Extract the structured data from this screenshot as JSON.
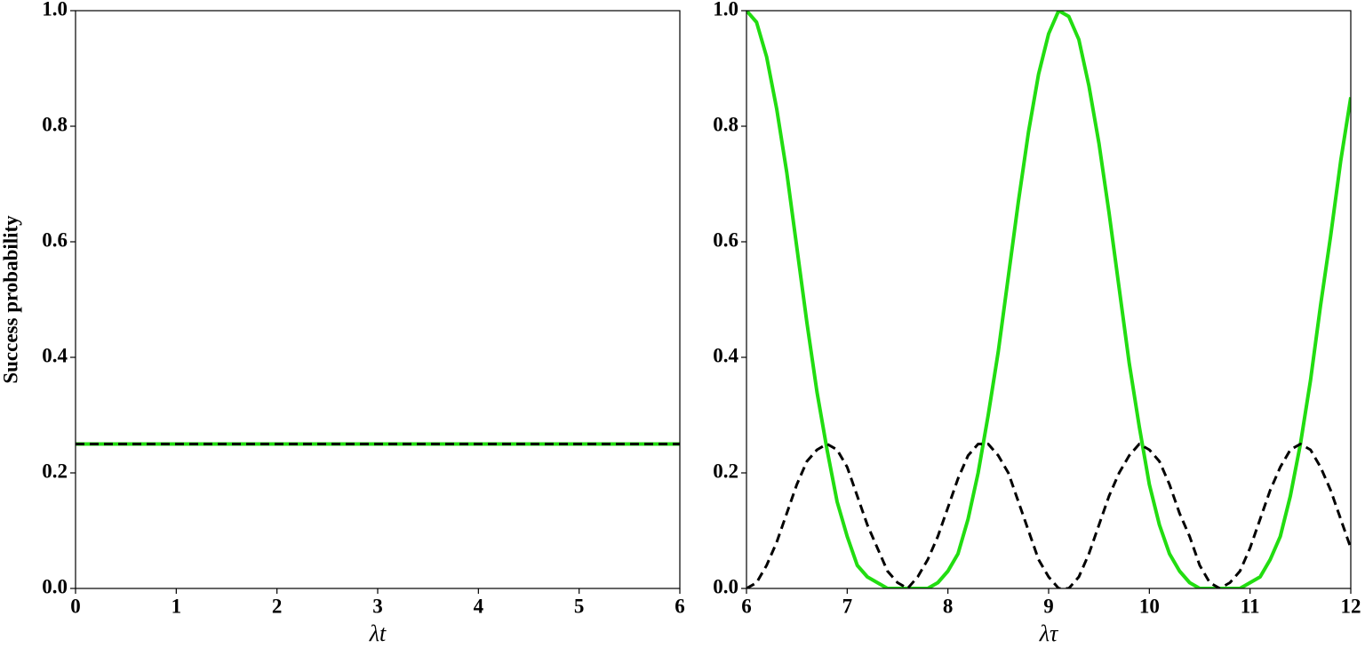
{
  "chart_data": [
    {
      "type": "line",
      "ylabel": "Success probability",
      "xlabel": "λt",
      "x": [
        0,
        6
      ],
      "series": [
        {
          "color": "#22dd11",
          "style": "solid",
          "values": [
            0.25,
            0.25
          ]
        },
        {
          "color": "#000000",
          "style": "dashed",
          "values": [
            0.25,
            0.25
          ]
        }
      ],
      "xlim": [
        0,
        6
      ],
      "xticks": [
        0,
        1,
        2,
        3,
        4,
        5,
        6
      ],
      "ylim": [
        0,
        1
      ],
      "yticks": [
        {
          "value": 0,
          "label": "0.0"
        },
        0.2,
        0.4,
        0.6,
        0.8,
        {
          "value": 1,
          "label": "1.0"
        }
      ]
    },
    {
      "type": "line",
      "xlabel": "λτ",
      "x": [
        6,
        6.1,
        6.2,
        6.3,
        6.4,
        6.5,
        6.6,
        6.7,
        6.8,
        6.9,
        7,
        7.1,
        7.2,
        7.3,
        7.4,
        7.5,
        7.6,
        7.7,
        7.8,
        7.9,
        8,
        8.1,
        8.2,
        8.3,
        8.4,
        8.5,
        8.6,
        8.7,
        8.8,
        8.9,
        9,
        9.1,
        9.2,
        9.3,
        9.4,
        9.5,
        9.6,
        9.7,
        9.8,
        9.9,
        10,
        10.1,
        10.2,
        10.3,
        10.4,
        10.5,
        10.6,
        10.7,
        10.8,
        10.9,
        11,
        11.1,
        11.2,
        11.3,
        11.4,
        11.5,
        11.6,
        11.7,
        11.8,
        11.9,
        12
      ],
      "series": [
        {
          "color": "#22dd11",
          "style": "solid",
          "values": [
            1,
            0.98,
            0.92,
            0.83,
            0.72,
            0.59,
            0.46,
            0.34,
            0.24,
            0.15,
            0.09,
            0.04,
            0.02,
            0.01,
            0,
            0,
            0,
            0,
            0,
            0.01,
            0.03,
            0.06,
            0.12,
            0.2,
            0.3,
            0.41,
            0.54,
            0.67,
            0.79,
            0.89,
            0.96,
            1,
            0.99,
            0.95,
            0.87,
            0.77,
            0.65,
            0.52,
            0.39,
            0.28,
            0.18,
            0.11,
            0.06,
            0.03,
            0.01,
            0,
            0,
            0,
            0,
            0,
            0.01,
            0.02,
            0.05,
            0.09,
            0.16,
            0.25,
            0.36,
            0.49,
            0.61,
            0.74,
            0.85
          ]
        },
        {
          "color": "#000000",
          "style": "dashed",
          "values": [
            0,
            0.01,
            0.04,
            0.08,
            0.13,
            0.18,
            0.22,
            0.24,
            0.25,
            0.24,
            0.21,
            0.16,
            0.11,
            0.07,
            0.03,
            0.01,
            0,
            0.02,
            0.05,
            0.09,
            0.14,
            0.19,
            0.23,
            0.25,
            0.25,
            0.23,
            0.2,
            0.15,
            0.1,
            0.05,
            0.02,
            0,
            0,
            0.02,
            0.06,
            0.11,
            0.16,
            0.2,
            0.23,
            0.25,
            0.24,
            0.22,
            0.18,
            0.13,
            0.09,
            0.04,
            0.01,
            0,
            0.01,
            0.03,
            0.07,
            0.12,
            0.17,
            0.21,
            0.24,
            0.25,
            0.24,
            0.21,
            0.17,
            0.12,
            0.07
          ]
        }
      ],
      "xlim": [
        6,
        12
      ],
      "xticks": [
        6,
        7,
        8,
        9,
        10,
        11,
        12
      ],
      "ylim": [
        0,
        1
      ],
      "yticks": [
        {
          "value": 0,
          "label": "0.0"
        },
        0.2,
        0.4,
        0.6,
        0.8,
        {
          "value": 1,
          "label": "1.0"
        }
      ]
    }
  ]
}
